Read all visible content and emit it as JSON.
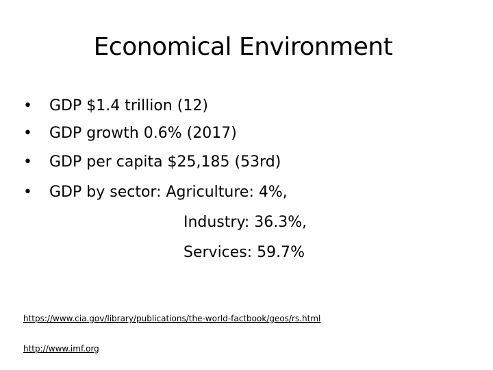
{
  "title": "Economical Environment",
  "bullets": [
    "GDP $1.4 trillion (12)",
    "GDP growth 0.6% (2017)",
    "GDP per capita $25,185 (53rd)",
    "GDP by sector: Agriculture: 4%,"
  ],
  "continuation": [
    "Industry: 36.3%,",
    "Services: 59.7%"
  ],
  "links": [
    "https://www.cia.gov/library/publications/the-world-factbook/geos/rs.html",
    "http://www.imf.org"
  ]
}
